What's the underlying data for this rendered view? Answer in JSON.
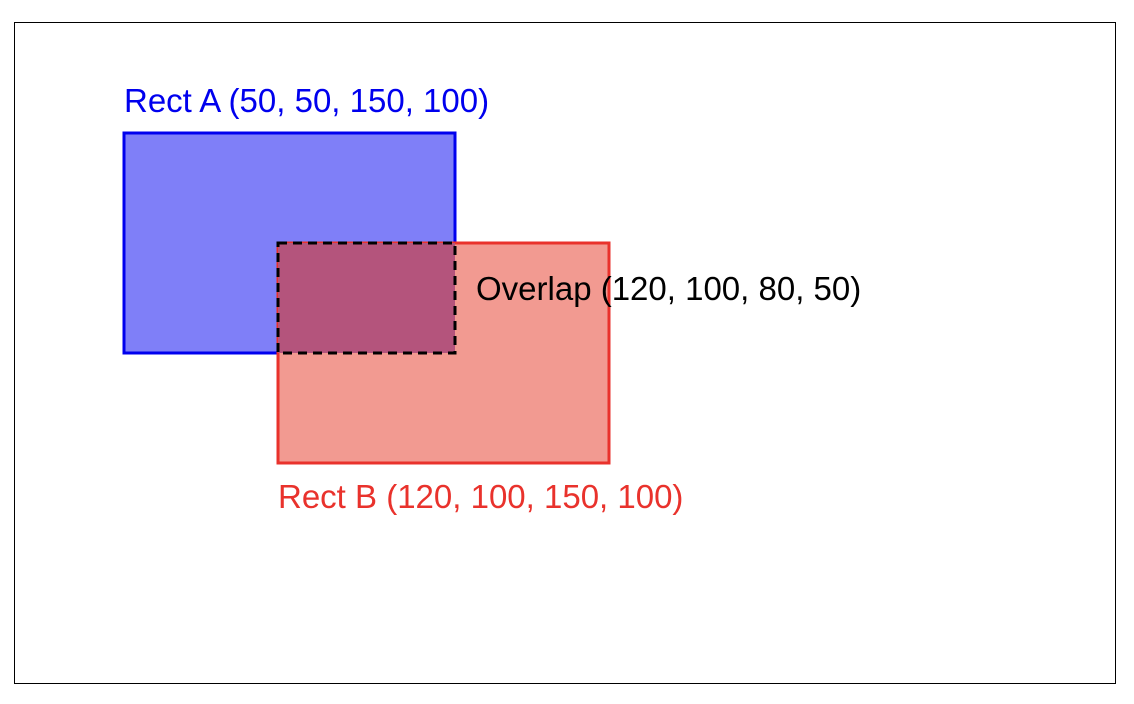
{
  "diagram": {
    "rect_a": {
      "label": "Rect A (50, 50, 150, 100)",
      "fill": "#7f7ff8",
      "stroke": "#0000ee",
      "label_color": "#0000ee"
    },
    "rect_b": {
      "label": "Rect B (120, 100, 150, 100)",
      "fill": "#f29a91",
      "stroke": "#e9322c",
      "label_color": "#e9322c"
    },
    "overlap": {
      "label": "Overlap (120, 100, 80, 50)",
      "fill": "#b4547c",
      "stroke": "#000000",
      "label_color": "#000000"
    }
  }
}
